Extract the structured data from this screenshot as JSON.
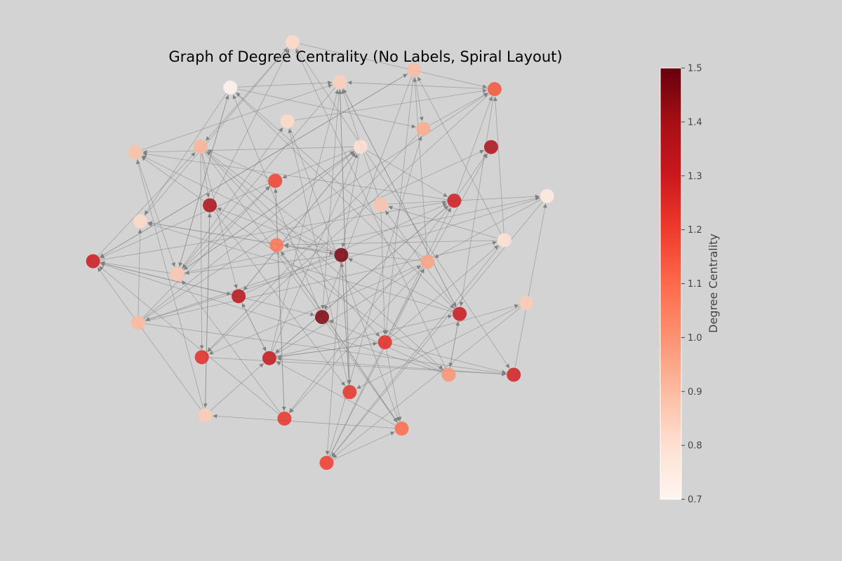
{
  "chart_data": {
    "type": "network",
    "title": "Graph of Degree Centrality (No Labels, Spiral Layout)",
    "colorbar": {
      "label": "Degree Centrality",
      "range": [
        0.7,
        1.5
      ],
      "ticks": [
        "0.7",
        "0.8",
        "0.9",
        "1.0",
        "1.1",
        "1.2",
        "1.3",
        "1.4",
        "1.5"
      ],
      "colormap": [
        "#fff5f0",
        "#fee0d2",
        "#fcbba1",
        "#fc9272",
        "#fb6a4a",
        "#ef3b2c",
        "#cb181d",
        "#a50f15",
        "#67000d"
      ]
    },
    "node_count": 38,
    "edge_color": "#808080",
    "node_degree_centrality": [
      1.47,
      1.07,
      0.88,
      1.46,
      1.19,
      0.96,
      1.35,
      0.8,
      1.24,
      1.38,
      1.29,
      1.32,
      0.82,
      1.31,
      0.87,
      0.94,
      1.23,
      0.92,
      0.79,
      1.24,
      0.85,
      1.0,
      0.82,
      1.38,
      1.22,
      0.71,
      0.86,
      0.91,
      0.9,
      1.1,
      0.89,
      0.75,
      0.86,
      0.82,
      1.28,
      1.3,
      1.15,
      1.2
    ]
  }
}
